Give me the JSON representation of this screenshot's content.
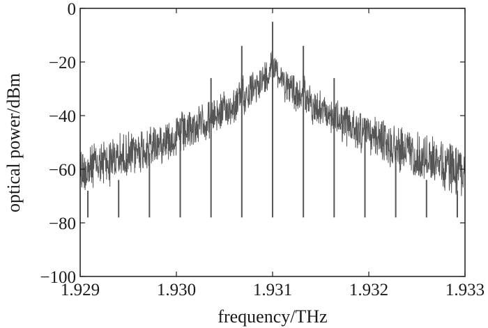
{
  "chart_data": {
    "type": "line",
    "title": "",
    "xlabel": "frequency/THz",
    "ylabel": "optical power/dBm",
    "xlim": [
      1.929,
      1.933
    ],
    "ylim": [
      -100,
      0
    ],
    "x_ticks": [
      {
        "value": 1.929,
        "label": "1.929"
      },
      {
        "value": 1.93,
        "label": "1.930"
      },
      {
        "value": 1.931,
        "label": "1.931"
      },
      {
        "value": 1.932,
        "label": "1.932"
      },
      {
        "value": 1.933,
        "label": "1.933"
      }
    ],
    "y_ticks": [
      {
        "value": 0,
        "label": "0"
      },
      {
        "value": -20,
        "label": "−20"
      },
      {
        "value": -40,
        "label": "−40"
      },
      {
        "value": -60,
        "label": "−60"
      },
      {
        "value": -80,
        "label": "−80"
      },
      {
        "value": -100,
        "label": "−100"
      }
    ],
    "grid": false,
    "line_color": "#555555",
    "series": [
      {
        "peaks": [
          {
            "x": 1.92908,
            "y": -68
          },
          {
            "x": 1.9294,
            "y": -64
          },
          {
            "x": 1.92972,
            "y": -54
          },
          {
            "x": 1.93004,
            "y": -41
          },
          {
            "x": 1.93036,
            "y": -26
          },
          {
            "x": 1.93068,
            "y": -14
          },
          {
            "x": 1.931,
            "y": -5
          },
          {
            "x": 1.93132,
            "y": -14
          },
          {
            "x": 1.93164,
            "y": -26
          },
          {
            "x": 1.93196,
            "y": -41
          },
          {
            "x": 1.93228,
            "y": -54
          },
          {
            "x": 1.9326,
            "y": -64
          },
          {
            "x": 1.93292,
            "y": -68
          }
        ],
        "noise_floor_center": -82
      }
    ]
  }
}
